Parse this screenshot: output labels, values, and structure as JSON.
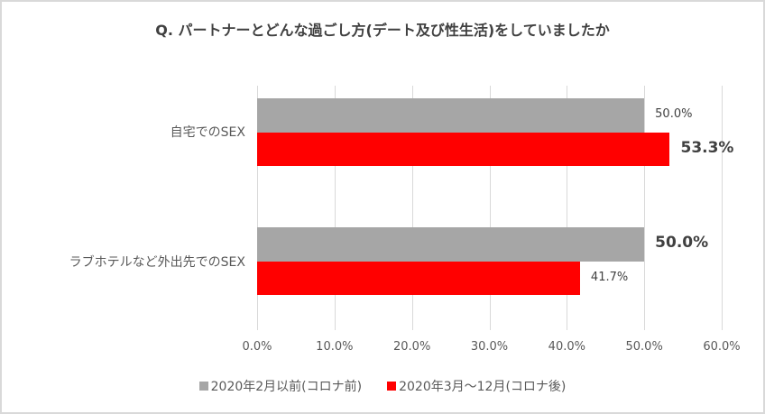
{
  "chart_data": {
    "type": "bar",
    "orientation": "horizontal",
    "title": "Q. パートナーとどんな過ごし方(デート及び性生活)をしていましたか",
    "categories": [
      "自宅でのSEX",
      "ラブホテルなど外出先でのSEX"
    ],
    "series": [
      {
        "name": "2020年2月以前(コロナ前)",
        "color": "#a6a6a6",
        "values": [
          50.0,
          50.0
        ],
        "labels": [
          "50.0%",
          "50.0%"
        ],
        "label_bold": [
          false,
          true
        ]
      },
      {
        "name": "2020年3月～12月(コロナ後)",
        "color": "#ff0000",
        "values": [
          53.3,
          41.7
        ],
        "labels": [
          "53.3%",
          "41.7%"
        ],
        "label_bold": [
          true,
          false
        ]
      }
    ],
    "xlabel": "",
    "ylabel": "",
    "xlim": [
      0,
      60
    ],
    "xticks": [
      "0.0%",
      "10.0%",
      "20.0%",
      "30.0%",
      "40.0%",
      "50.0%",
      "60.0%"
    ],
    "grid": true,
    "legend_position": "bottom"
  }
}
